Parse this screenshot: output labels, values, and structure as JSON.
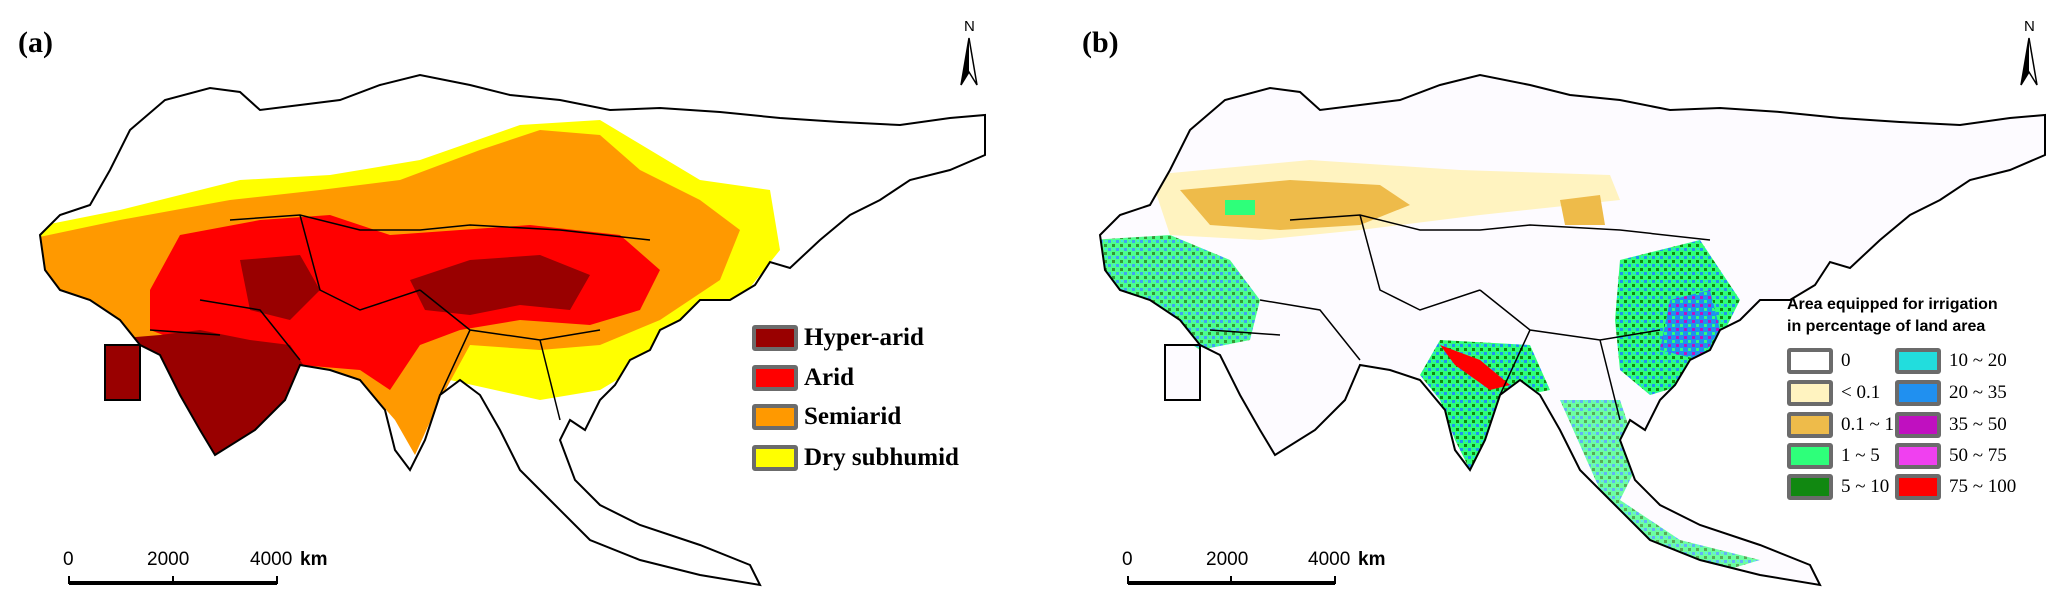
{
  "panel_a": {
    "label": "(a)",
    "north": "N",
    "legend": [
      {
        "label": "Hyper-arid",
        "color": "#990000"
      },
      {
        "label": "Arid",
        "color": "#FF0000"
      },
      {
        "label": "Semiarid",
        "color": "#FF9900"
      },
      {
        "label": "Dry subhumid",
        "color": "#FFFF00"
      }
    ],
    "scale": {
      "ticks": [
        "0",
        "2000",
        "4000"
      ],
      "unit": "km"
    }
  },
  "panel_b": {
    "label": "(b)",
    "north": "N",
    "legend_title_1": "Area equipped for irrigation",
    "legend_title_2": "in percentage of land area",
    "legend": [
      {
        "label": "0",
        "color": "#FFFFFF"
      },
      {
        "label": "< 0.1",
        "color": "#FFF3C0"
      },
      {
        "label": "0.1 ~ 1",
        "color": "#EEBB4A"
      },
      {
        "label": "1 ~ 5",
        "color": "#2EFF7A"
      },
      {
        "label": "5 ~ 10",
        "color": "#118811"
      },
      {
        "label": "10 ~ 20",
        "color": "#22DDDD"
      },
      {
        "label": "20 ~ 35",
        "color": "#2090F0"
      },
      {
        "label": "35 ~ 50",
        "color": "#C010C0"
      },
      {
        "label": "50 ~ 75",
        "color": "#F040F0"
      },
      {
        "label": "75 ~ 100",
        "color": "#FF0000"
      }
    ],
    "scale": {
      "ticks": [
        "0",
        "2000",
        "4000"
      ],
      "unit": "km"
    }
  }
}
